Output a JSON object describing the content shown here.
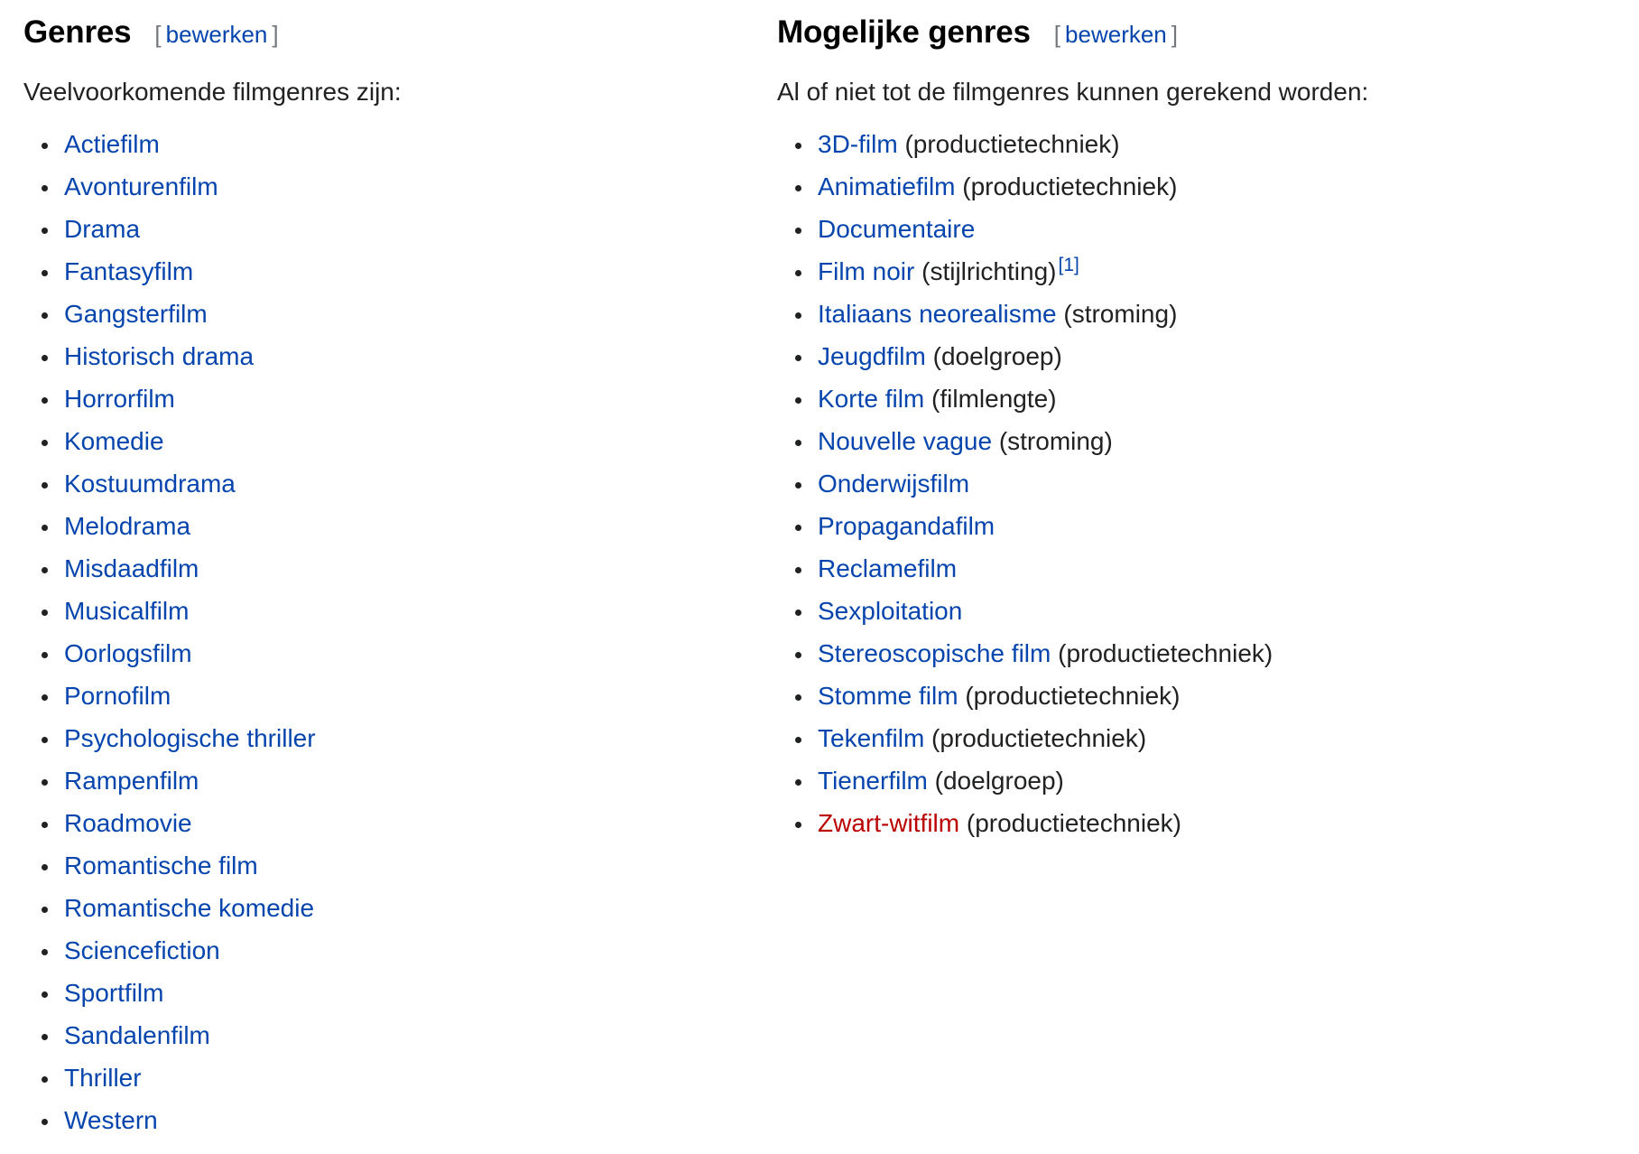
{
  "left": {
    "heading": "Genres",
    "edit_open": "[",
    "edit_label": "bewerken",
    "edit_close": "]",
    "intro": "Veelvoorkomende filmgenres zijn:",
    "items": [
      {
        "label": "Actiefilm"
      },
      {
        "label": "Avonturenfilm"
      },
      {
        "label": "Drama"
      },
      {
        "label": "Fantasyfilm"
      },
      {
        "label": "Gangsterfilm"
      },
      {
        "label": "Historisch drama"
      },
      {
        "label": "Horrorfilm"
      },
      {
        "label": "Komedie"
      },
      {
        "label": "Kostuumdrama"
      },
      {
        "label": "Melodrama"
      },
      {
        "label": "Misdaadfilm"
      },
      {
        "label": "Musicalfilm"
      },
      {
        "label": "Oorlogsfilm"
      },
      {
        "label": "Pornofilm"
      },
      {
        "label": "Psychologische thriller"
      },
      {
        "label": "Rampenfilm"
      },
      {
        "label": "Roadmovie"
      },
      {
        "label": "Romantische film"
      },
      {
        "label": "Romantische komedie"
      },
      {
        "label": "Sciencefiction"
      },
      {
        "label": "Sportfilm"
      },
      {
        "label": "Sandalenfilm"
      },
      {
        "label": "Thriller"
      },
      {
        "label": "Western"
      }
    ]
  },
  "right": {
    "heading": "Mogelijke genres",
    "edit_open": "[",
    "edit_label": "bewerken",
    "edit_close": "]",
    "intro": "Al of niet tot de filmgenres kunnen gerekend worden:",
    "items": [
      {
        "label": "3D-film",
        "note": "(productietechniek)"
      },
      {
        "label": "Animatiefilm",
        "note": "(productietechniek)"
      },
      {
        "label": "Documentaire",
        "note": ""
      },
      {
        "label": "Film noir",
        "note": "(stijlrichting)",
        "ref": "[1]"
      },
      {
        "label": "Italiaans neorealisme",
        "note": "(stroming)"
      },
      {
        "label": "Jeugdfilm",
        "note": "(doelgroep)"
      },
      {
        "label": "Korte film",
        "note": "(filmlengte)"
      },
      {
        "label": "Nouvelle vague",
        "note": "(stroming)"
      },
      {
        "label": "Onderwijsfilm",
        "note": ""
      },
      {
        "label": "Propagandafilm",
        "note": ""
      },
      {
        "label": "Reclamefilm",
        "note": ""
      },
      {
        "label": "Sexploitation",
        "note": ""
      },
      {
        "label": "Stereoscopische film",
        "note": "(productietechniek)"
      },
      {
        "label": "Stomme film",
        "note": "(productietechniek)"
      },
      {
        "label": "Tekenfilm",
        "note": "(productietechniek)"
      },
      {
        "label": "Tienerfilm",
        "note": "(doelgroep)"
      },
      {
        "label": "Zwart-witfilm",
        "note": "(productietechniek)",
        "redlink": true
      }
    ]
  },
  "colors": {
    "link": "#0645ad",
    "redlink": "#ba0000",
    "text": "#202122"
  }
}
